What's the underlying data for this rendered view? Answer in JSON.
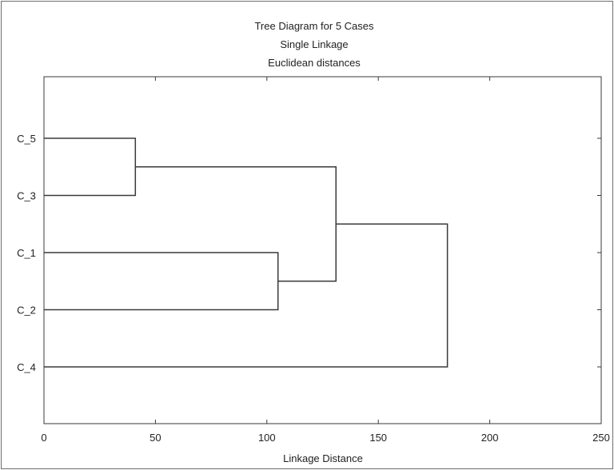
{
  "chart_data": {
    "type": "dendrogram",
    "title": [
      "Tree Diagram for 5 Cases",
      "Single Linkage",
      "Euclidean distances"
    ],
    "xlabel": "Linkage Distance",
    "ylabel": "",
    "xlim": [
      0,
      250
    ],
    "x_ticks": [
      "0",
      "50",
      "100",
      "150",
      "200",
      "250"
    ],
    "x_tick_values": [
      0,
      50,
      100,
      150,
      200,
      250
    ],
    "grid": false,
    "leaves": [
      "C_5",
      "C_3",
      "C_1",
      "C_2",
      "C_4"
    ],
    "merges": [
      {
        "left": "C_5",
        "right": "C_3",
        "distance": 41
      },
      {
        "left": "C_1",
        "right": "C_2",
        "distance": 105
      },
      {
        "left": "C_5+C_3",
        "right": "C_1+C_2",
        "distance": 131
      },
      {
        "left": "C_5+C_3+C_1+C_2",
        "right": "C_4",
        "distance": 181
      }
    ],
    "line_color": "#3a3a3a"
  }
}
